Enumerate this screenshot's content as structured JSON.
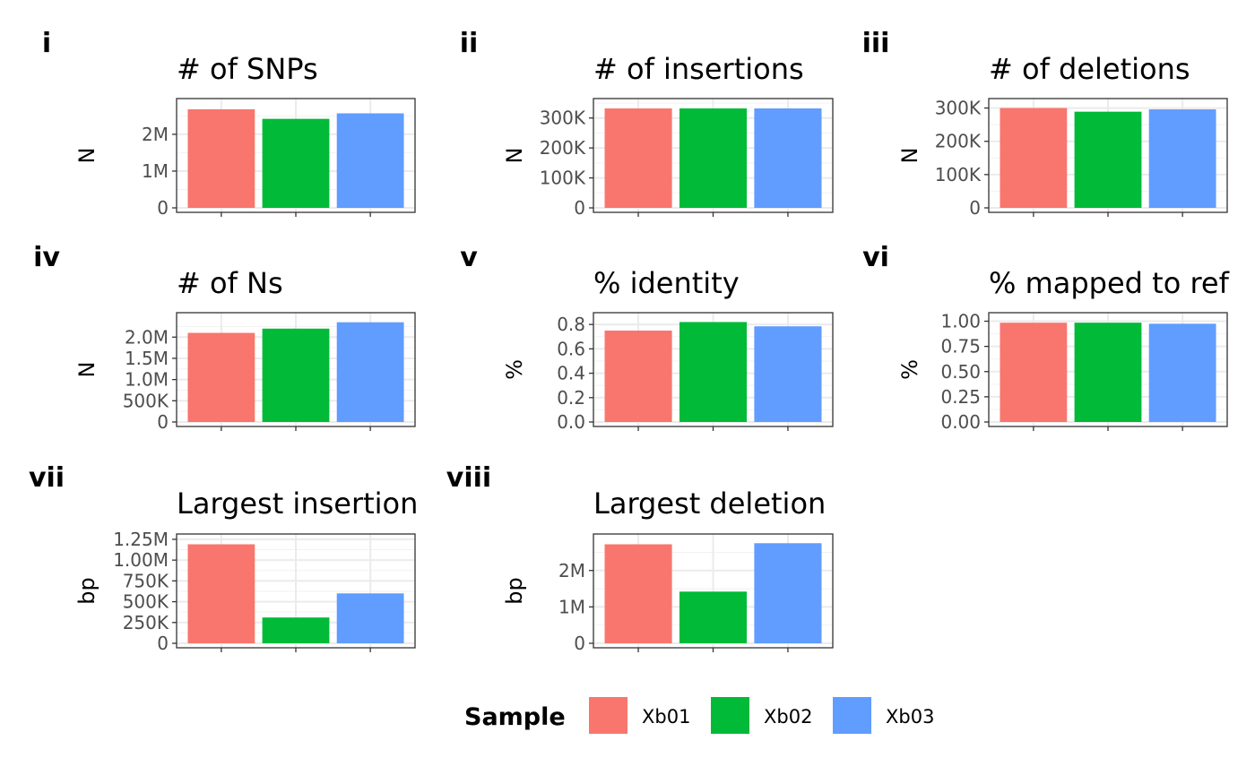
{
  "chart_data": [
    {
      "panel": "i",
      "type": "bar",
      "title": "# of SNPs",
      "xlabel": "",
      "ylabel": "N",
      "categories": [
        "Xb01",
        "Xb02",
        "Xb03"
      ],
      "values": [
        2680000,
        2420000,
        2570000
      ],
      "ylim": [
        0,
        2850000
      ],
      "ticks": [
        0,
        1000000,
        2000000
      ],
      "tick_labels": [
        "0",
        "1M",
        "2M"
      ]
    },
    {
      "panel": "ii",
      "type": "bar",
      "title": "# of insertions",
      "xlabel": "",
      "ylabel": "N",
      "categories": [
        "Xb01",
        "Xb02",
        "Xb03"
      ],
      "values": [
        332000,
        332000,
        332000
      ],
      "ylim": [
        0,
        350000
      ],
      "ticks": [
        0,
        100000,
        200000,
        300000
      ],
      "tick_labels": [
        "0",
        "100K",
        "200K",
        "300K"
      ]
    },
    {
      "panel": "iii",
      "type": "bar",
      "title": "# of deletions",
      "xlabel": "",
      "ylabel": "N",
      "categories": [
        "Xb01",
        "Xb02",
        "Xb03"
      ],
      "values": [
        300000,
        289000,
        296000
      ],
      "ylim": [
        0,
        315000
      ],
      "ticks": [
        0,
        100000,
        200000,
        300000
      ],
      "tick_labels": [
        "0",
        "100K",
        "200K",
        "300K"
      ]
    },
    {
      "panel": "iv",
      "type": "bar",
      "title": "# of Ns",
      "xlabel": "",
      "ylabel": "N",
      "categories": [
        "Xb01",
        "Xb02",
        "Xb03"
      ],
      "values": [
        2100000,
        2200000,
        2350000
      ],
      "ylim": [
        0,
        2470000
      ],
      "ticks": [
        0,
        500000,
        1000000,
        1500000,
        2000000
      ],
      "tick_labels": [
        "0",
        "500K",
        "1.0M",
        "1.5M",
        "2.0M"
      ]
    },
    {
      "panel": "v",
      "type": "bar",
      "title": "% identity",
      "xlabel": "",
      "ylabel": "%",
      "categories": [
        "Xb01",
        "Xb02",
        "Xb03"
      ],
      "values": [
        0.75,
        0.82,
        0.785
      ],
      "ylim": [
        0,
        0.86
      ],
      "ticks": [
        0,
        0.2,
        0.4,
        0.6,
        0.8
      ],
      "tick_labels": [
        "0.0",
        "0.2",
        "0.4",
        "0.6",
        "0.8"
      ]
    },
    {
      "panel": "vi",
      "type": "bar",
      "title": "% mapped to ref",
      "xlabel": "",
      "ylabel": "%",
      "categories": [
        "Xb01",
        "Xb02",
        "Xb03"
      ],
      "values": [
        0.985,
        0.985,
        0.975
      ],
      "ylim": [
        0,
        1.04
      ],
      "ticks": [
        0,
        0.25,
        0.5,
        0.75,
        1.0
      ],
      "tick_labels": [
        "0.00",
        "0.25",
        "0.50",
        "0.75",
        "1.00"
      ]
    },
    {
      "panel": "vii",
      "type": "bar",
      "title": "Largest insertion",
      "xlabel": "",
      "ylabel": "bp",
      "categories": [
        "Xb01",
        "Xb02",
        "Xb03"
      ],
      "values": [
        1190000,
        310000,
        600000
      ],
      "ylim": [
        0,
        1260000
      ],
      "ticks": [
        0,
        250000,
        500000,
        750000,
        1000000,
        1250000
      ],
      "tick_labels": [
        "0",
        "250K",
        "500K",
        "750K",
        "1.00M",
        "1.25M"
      ]
    },
    {
      "panel": "viii",
      "type": "bar",
      "title": "Largest deletion",
      "xlabel": "",
      "ylabel": "bp",
      "categories": [
        "Xb01",
        "Xb02",
        "Xb03"
      ],
      "values": [
        2720000,
        1420000,
        2750000
      ],
      "ylim": [
        0,
        2880000
      ],
      "ticks": [
        0,
        1000000,
        2000000
      ],
      "tick_labels": [
        "0",
        "1M",
        "2M"
      ]
    }
  ],
  "legend": {
    "title": "Sample",
    "position": "bottom",
    "items": [
      {
        "label": "Xb01",
        "color": "#F8766D"
      },
      {
        "label": "Xb02",
        "color": "#00BA38"
      },
      {
        "label": "Xb03",
        "color": "#619CFF"
      }
    ]
  },
  "grid": true
}
